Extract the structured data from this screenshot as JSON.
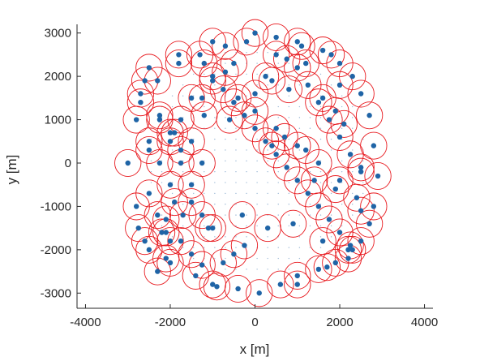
{
  "chart_data": {
    "type": "scatter",
    "title": "",
    "xlabel": "x [m]",
    "ylabel": "y [m]",
    "xlim": [
      -4200,
      4200
    ],
    "ylim": [
      -3350,
      3200
    ],
    "xticks": [
      -4000,
      -2000,
      0,
      2000,
      4000
    ],
    "yticks": [
      -3000,
      -2000,
      -1000,
      0,
      1000,
      2000,
      3000
    ],
    "xtick_labels": [
      "-4000",
      "-2000",
      "0",
      "2000",
      "4000"
    ],
    "ytick_labels": [
      "-3000",
      "-2000",
      "-1000",
      "0",
      "1000",
      "2000",
      "3000"
    ],
    "grid": false,
    "legend": "none",
    "circle_radius": 310,
    "field_radius": 2950,
    "colors": {
      "points": "#1f64a6",
      "circles": "#e8191e",
      "small_dots": "#4a7fb5",
      "axes": "#262626"
    },
    "series": [
      {
        "marker": "filled-dot-with-circle",
        "x": [
          0,
          -1000,
          1000,
          -1000,
          1000,
          -1800,
          1800,
          -2000,
          -2500,
          -2600,
          -2700,
          -3000,
          -2800,
          -2800,
          -2750,
          -2600,
          -2500,
          -2300,
          -2100,
          -1400,
          -900,
          -400,
          100,
          600,
          1000,
          1500,
          1900,
          2300,
          2500,
          2700,
          2800,
          2900,
          2800,
          2700,
          2500,
          2300,
          2000,
          1600,
          1100,
          500,
          -200,
          -700,
          -1300,
          -1800,
          -2300,
          -2700,
          -2500,
          -2250,
          -2250,
          -2000,
          -2000,
          -1750,
          -1750,
          -1500,
          -1500,
          -1250,
          -1250,
          -2500,
          -2300,
          -2100,
          -1750,
          -1500,
          -1250,
          -1000,
          -750,
          -500,
          -250,
          0,
          250,
          500,
          750,
          1000,
          1250,
          1500,
          1750,
          2000,
          2250,
          2500,
          2250,
          2000,
          1750,
          1500,
          1250,
          1000,
          750,
          500,
          250,
          0,
          -250,
          -500,
          -750,
          -1000,
          -1250,
          -1500,
          -1750,
          -2000,
          -2250,
          -1500,
          -1000,
          -500,
          0,
          500,
          1000,
          1500,
          2000,
          2400,
          -300,
          300,
          700,
          1200,
          1700,
          2200,
          -2200,
          -1700,
          -1200,
          -700,
          800,
          1600,
          2200,
          1600,
          900,
          -600,
          -1100,
          400,
          1400,
          2500,
          -2500,
          -1900,
          -1200,
          -400,
          400,
          1200,
          1900,
          2500,
          -1900,
          -2100,
          2100,
          1900,
          2000,
          -2000
        ],
        "y": [
          3000,
          2800,
          2800,
          -2800,
          -2800,
          2500,
          2500,
          -2300,
          2200,
          1900,
          1600,
          0,
          1000,
          -1000,
          -1500,
          -1800,
          -2000,
          -2500,
          -2200,
          -2600,
          -2850,
          -2900,
          -3000,
          -2800,
          -2600,
          -2450,
          -2300,
          -2000,
          -1800,
          -1400,
          -1000,
          -300,
          400,
          1100,
          1600,
          2000,
          2300,
          2600,
          2700,
          2900,
          2800,
          2700,
          2500,
          2300,
          1900,
          1400,
          500,
          0,
          1000,
          500,
          -500,
          0,
          1000,
          500,
          -500,
          0,
          1500,
          -700,
          -1200,
          -1600,
          -1800,
          -2100,
          -2350,
          2000,
          1700,
          1400,
          1100,
          800,
          500,
          200,
          -100,
          -400,
          -700,
          -1000,
          -1300,
          -1600,
          -1900,
          -200,
          200,
          600,
          1000,
          1400,
          1800,
          2200,
          2400,
          2500,
          2000,
          1600,
          -1900,
          -2100,
          -2300,
          -1500,
          -1200,
          -900,
          300,
          700,
          1100,
          1500,
          1900,
          2300,
          1200,
          800,
          400,
          0,
          -400,
          -800,
          -1200,
          -1500,
          600,
          300,
          -2400,
          -2000,
          -1600,
          -1200,
          2300,
          2100,
          1700,
          1500,
          -2200,
          -1800,
          -1400,
          1000,
          -1500,
          400,
          -400,
          -100,
          300,
          700,
          1100,
          1500,
          1900,
          2300,
          -600,
          -1100,
          -900,
          -1300,
          900,
          1200,
          1800,
          -1800
        ]
      }
    ]
  }
}
